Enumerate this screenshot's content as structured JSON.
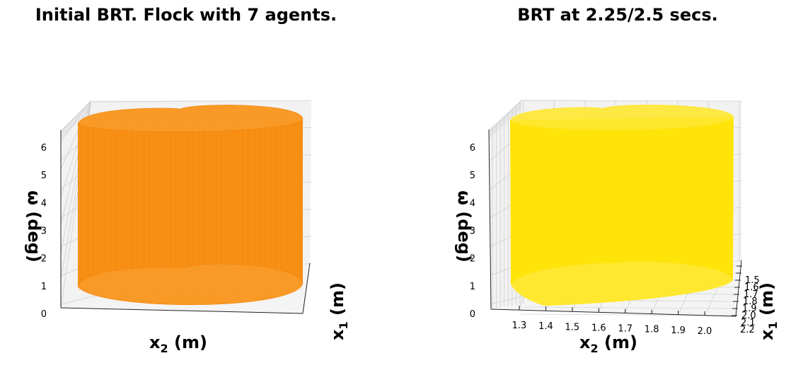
{
  "chart_data": [
    {
      "type": "3d-surface",
      "title": "Initial BRT. Flock with 7 agents.",
      "xlabel": "x₂ (m)",
      "ylabel": "x₁ (m)",
      "zlabel": "ω (deg)",
      "zticks": [
        "0",
        "1",
        "2",
        "3",
        "4",
        "5",
        "6"
      ],
      "xticks": [],
      "yticks": [],
      "surface_color": "#f78e12"
    },
    {
      "type": "3d-surface",
      "title": "BRT at 2.25/2.5 secs.",
      "xlabel": "x₂ (m)",
      "ylabel": "x₁ (m)",
      "zlabel": "ω (deg)",
      "zticks": [
        "0",
        "1",
        "2",
        "3",
        "4",
        "5",
        "6"
      ],
      "xticks": [
        "1.3",
        "1.4",
        "1.5",
        "1.6",
        "1.7",
        "1.8",
        "1.9",
        "2.0"
      ],
      "yticks": [
        "1.5",
        "1.6",
        "1.7",
        "1.8",
        "1.9",
        "2.0",
        "2.1",
        "2.2"
      ],
      "surface_color": "#ffe40a"
    }
  ]
}
